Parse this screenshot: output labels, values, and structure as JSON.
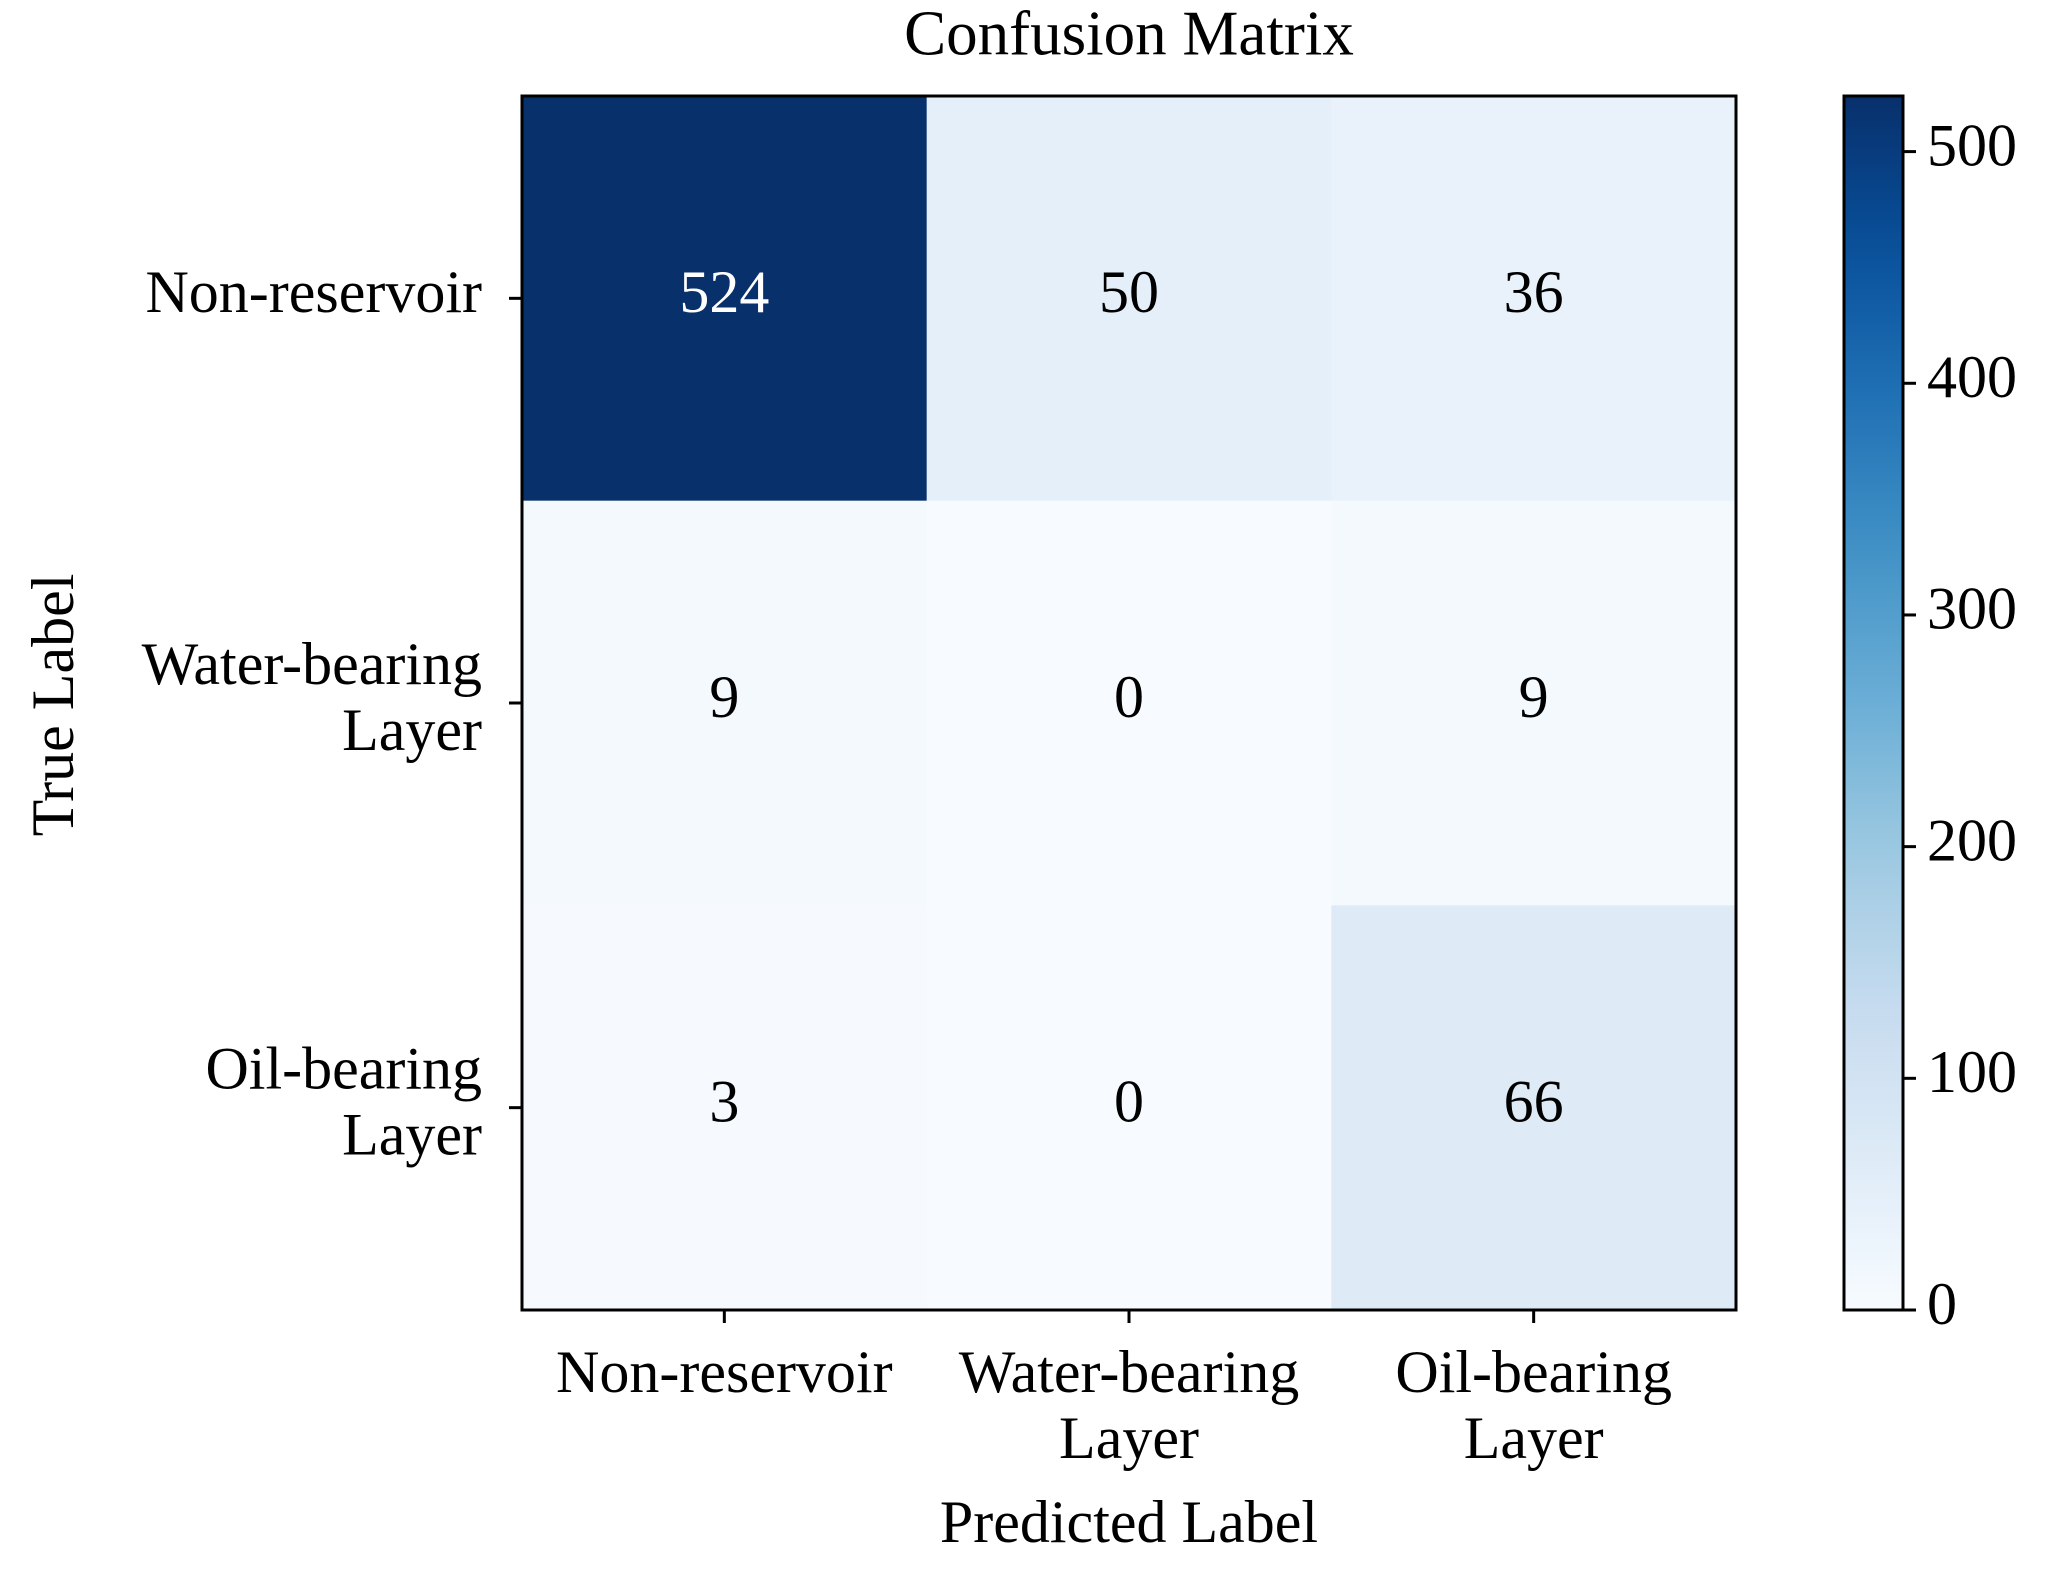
{
  "chart_data": {
    "type": "heatmap",
    "title": "Confusion Matrix",
    "x_label": "Predicted Label",
    "y_label": "True Label",
    "columns": [
      "Non-reservoir",
      "Water-bearing\nLayer",
      "Oil-bearing\nLayer"
    ],
    "rows": [
      "Non-reservoir",
      "Water-bearing\nLayer",
      "Oil-bearing\nLayer"
    ],
    "values": [
      [
        524,
        50,
        36
      ],
      [
        9,
        0,
        9
      ],
      [
        3,
        0,
        66
      ]
    ],
    "colormap": "Blues",
    "colorbar_lim": [
      0,
      524
    ],
    "colorbar_ticks": [
      0,
      100,
      200,
      300,
      400,
      500
    ]
  }
}
